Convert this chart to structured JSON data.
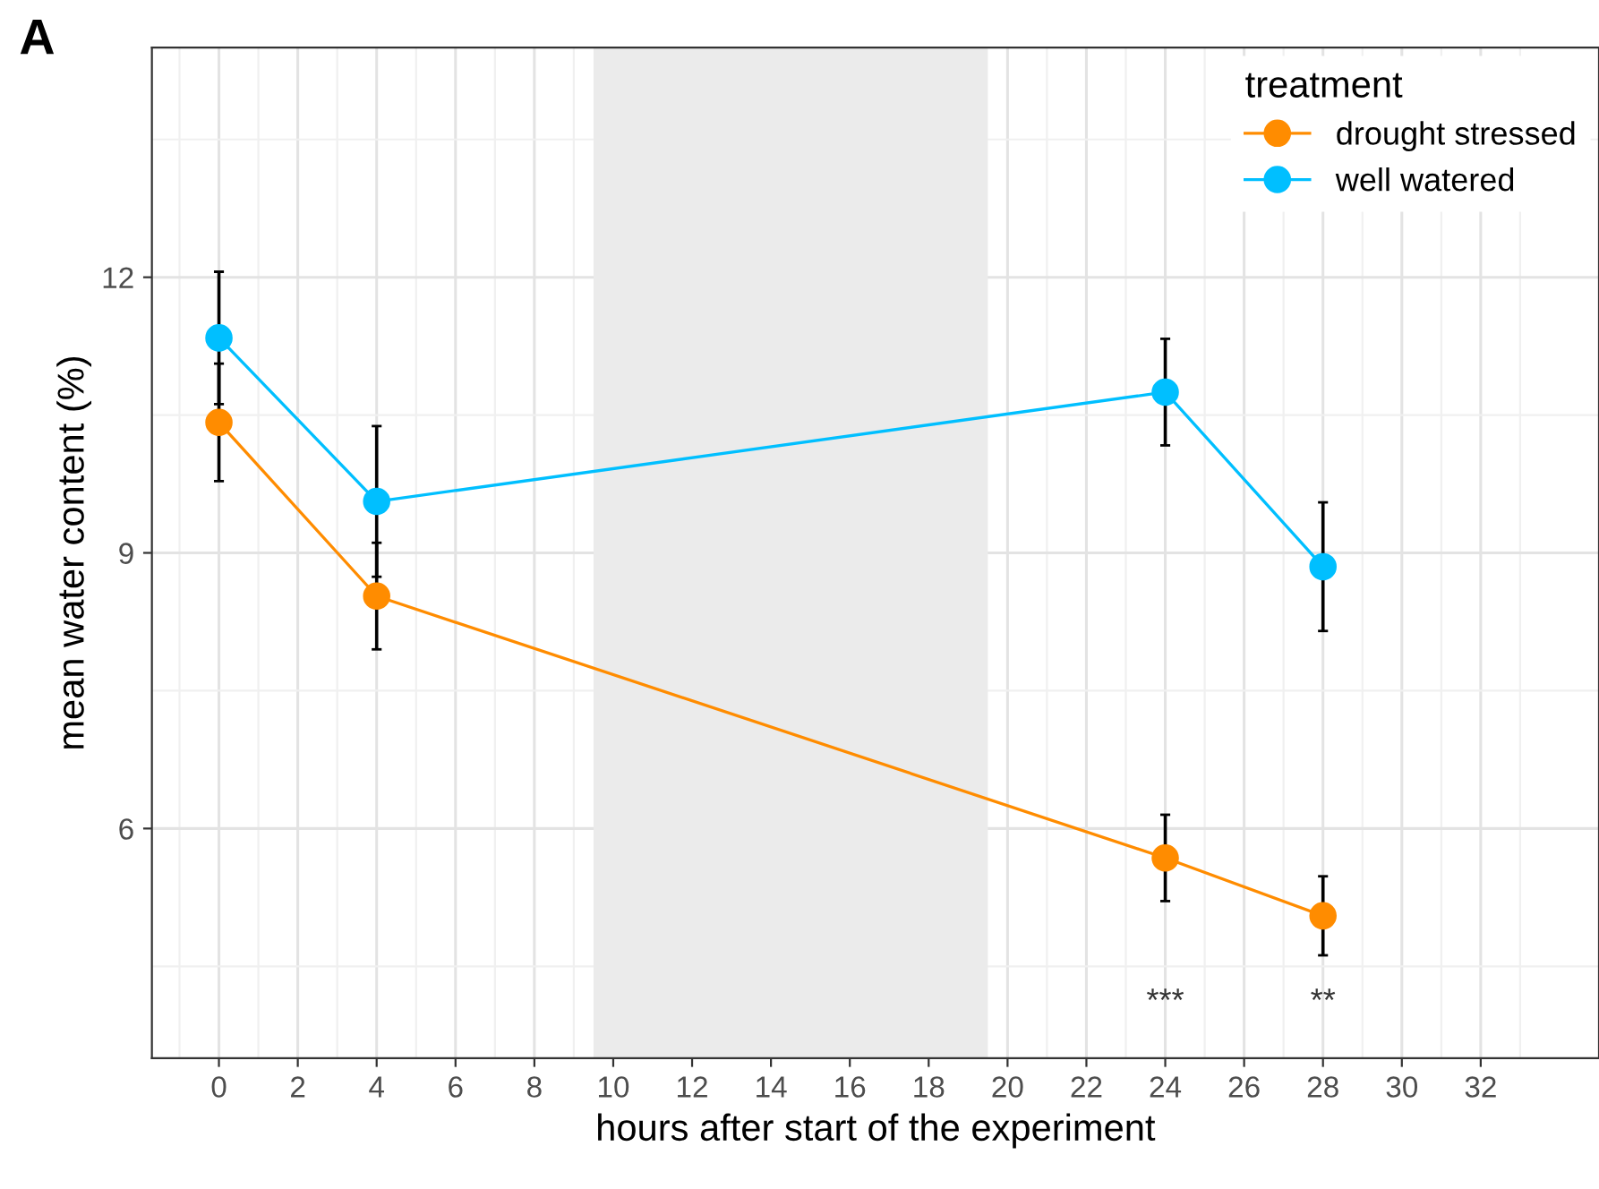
{
  "chart_data": {
    "type": "line",
    "title": "A",
    "xlabel": "hours after start of the experiment",
    "ylabel": "mean water content (%)",
    "legend_title": "treatment",
    "x": [
      0,
      4,
      24,
      28
    ],
    "series": [
      {
        "name": "drought stressed",
        "color": "#ff8c00",
        "values": [
          10.42,
          8.53,
          5.68,
          5.05
        ],
        "errors": [
          0.64,
          0.58,
          0.47,
          0.43
        ]
      },
      {
        "name": "well watered",
        "color": "#00bfff",
        "values": [
          11.34,
          9.56,
          10.75,
          8.85
        ],
        "errors": [
          0.72,
          0.82,
          0.58,
          0.7
        ]
      }
    ],
    "xlim": [
      -1.7,
      35
    ],
    "xticks": [
      0,
      2,
      4,
      6,
      8,
      10,
      12,
      14,
      16,
      18,
      20,
      22,
      24,
      26,
      28,
      30,
      32
    ],
    "ylim": [
      3.5,
      14.5
    ],
    "yticks": [
      6,
      9,
      12
    ],
    "bands": [
      {
        "axis": "x",
        "from": 9.5,
        "to": 19.5,
        "color": "#ebebeb"
      }
    ],
    "annotations": [
      "***",
      "**"
    ],
    "grid": true,
    "legend": "top right",
    "marker": "circle",
    "line_style": "solid"
  }
}
